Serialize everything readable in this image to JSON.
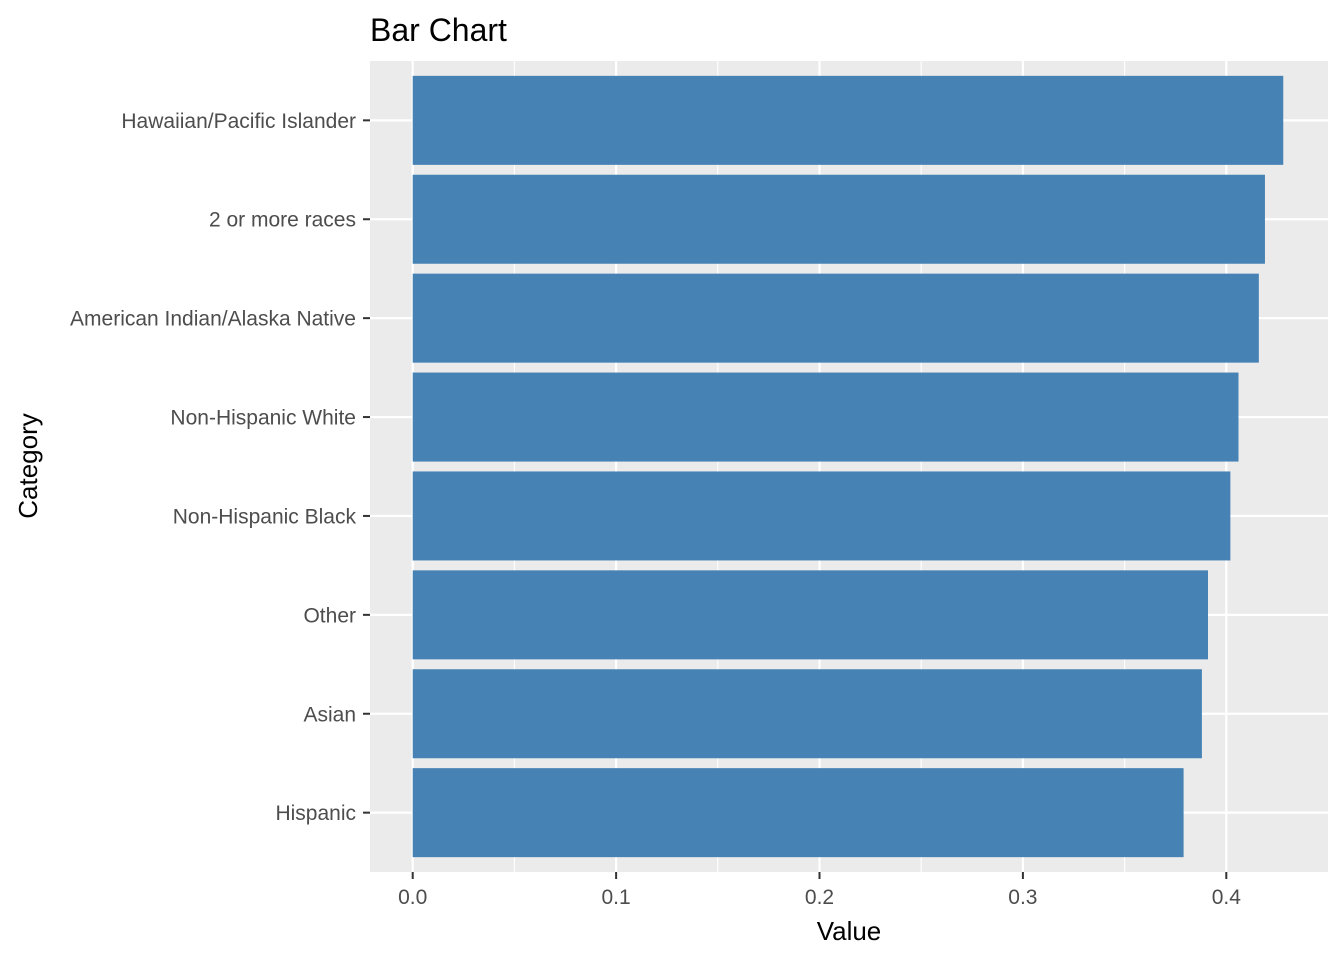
{
  "chart_data": {
    "type": "bar",
    "orientation": "horizontal",
    "title": "Bar Chart",
    "xlabel": "Value",
    "ylabel": "Category",
    "categories": [
      "Hawaiian/Pacific Islander",
      "2 or more races",
      "American Indian/Alaska Native",
      "Non-Hispanic White",
      "Non-Hispanic Black",
      "Other",
      "Asian",
      "Hispanic"
    ],
    "values": [
      0.428,
      0.419,
      0.416,
      0.406,
      0.402,
      0.391,
      0.388,
      0.379
    ],
    "xlim": [
      -0.021,
      0.45
    ],
    "x_ticks": [
      0.0,
      0.1,
      0.2,
      0.3,
      0.4
    ],
    "x_tick_labels": [
      "0.0",
      "0.1",
      "0.2",
      "0.3",
      "0.4"
    ],
    "grid": true,
    "legend": "none",
    "colors": {
      "bar": "#4682b4",
      "panel_background": "#ebebeb",
      "grid": "#ffffff",
      "tick": "#333333"
    }
  }
}
